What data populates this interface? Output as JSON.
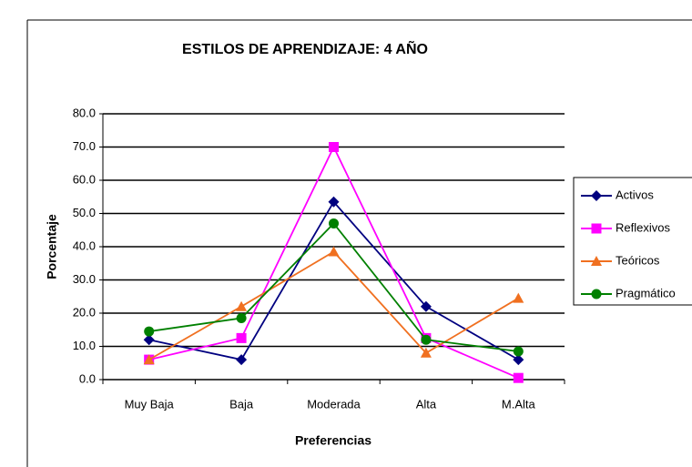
{
  "chart_data": {
    "type": "line",
    "title": "ESTILOS DE APRENDIZAJE: 4  AÑO",
    "x_label": "Preferencias",
    "y_label": "Porcentaje",
    "categories": [
      "Muy Baja",
      "Baja",
      "Moderada",
      "Alta",
      "M.Alta"
    ],
    "series": [
      {
        "name": "Activos",
        "color": "#000080",
        "marker": "diamond",
        "values": [
          12,
          6,
          53.5,
          22,
          6
        ]
      },
      {
        "name": "Reflexivos",
        "color": "#ff00ff",
        "marker": "square",
        "values": [
          6,
          12.5,
          70,
          12.5,
          0.5
        ]
      },
      {
        "name": "Teóricos",
        "color": "#f07020",
        "marker": "triangle",
        "values": [
          6,
          22,
          38.5,
          8,
          24.5
        ]
      },
      {
        "name": "Pragmático",
        "color": "#008000",
        "marker": "circle",
        "values": [
          14.5,
          18.5,
          47,
          12,
          8.5
        ]
      }
    ],
    "ylim": [
      0,
      80
    ],
    "yticks": [
      {
        "value": 0,
        "label": "0.0"
      },
      {
        "value": 10,
        "label": "10.0"
      },
      {
        "value": 20,
        "label": "20.0"
      },
      {
        "value": 30,
        "label": "30.0"
      },
      {
        "value": 40,
        "label": "40.0"
      },
      {
        "value": 50,
        "label": "50.0"
      },
      {
        "value": 60,
        "label": "60.0"
      },
      {
        "value": 70,
        "label": "70.0"
      },
      {
        "value": 80,
        "label": "80.0"
      }
    ],
    "grid": true,
    "legend": "right"
  }
}
